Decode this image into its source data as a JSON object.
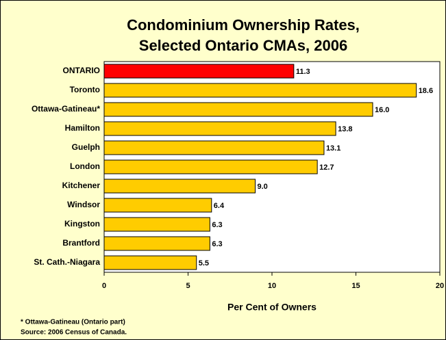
{
  "chart_data": {
    "type": "bar",
    "orientation": "horizontal",
    "title": [
      "Condominium Ownership Rates,",
      "Selected Ontario CMAs, 2006"
    ],
    "categories": [
      "ONTARIO",
      "Toronto",
      "Ottawa-Gatineau*",
      "Hamilton",
      "Guelph",
      "London",
      "Kitchener",
      "Windsor",
      "Kingston",
      "Brantford",
      "St. Cath.-Niagara"
    ],
    "values": [
      11.3,
      18.6,
      16,
      13.8,
      13.1,
      12.7,
      9,
      6.4,
      6.3,
      6.3,
      5.5
    ],
    "value_labels": [
      "11.3",
      "18.6",
      "16.0",
      "13.8",
      "13.1",
      "12.7",
      "9.0",
      "6.4",
      "6.3",
      "6.3",
      "5.5"
    ],
    "colors": [
      "#ff0000",
      "#ffcc00",
      "#ffcc00",
      "#ffcc00",
      "#ffcc00",
      "#ffcc00",
      "#ffcc00",
      "#ffcc00",
      "#ffcc00",
      "#ffcc00",
      "#ffcc00"
    ],
    "xlim": [
      0,
      20
    ],
    "xticks": [
      0,
      5,
      10,
      15,
      20
    ],
    "xlabel": "Per Cent of Owners",
    "notes": [
      "* Ottawa-Gatineau (Ontario part)",
      "Source: 2006 Census of Canada."
    ]
  }
}
